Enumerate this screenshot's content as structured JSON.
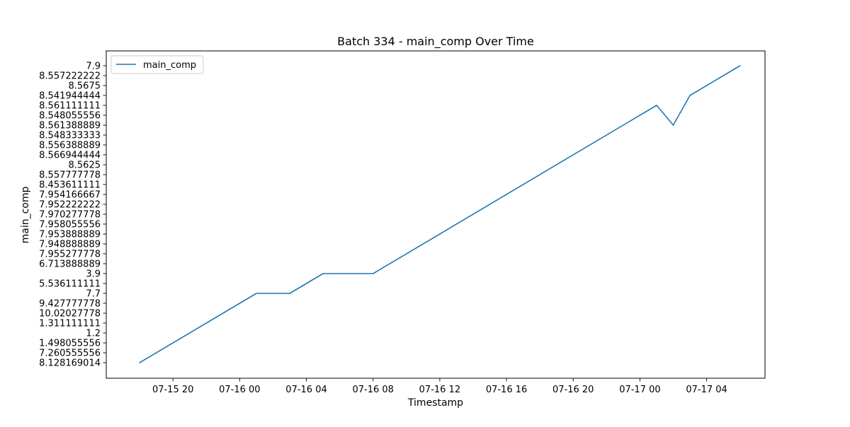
{
  "chart_data": {
    "type": "line",
    "title": "Batch 334 - main_comp Over Time",
    "xlabel": "Timestamp",
    "ylabel": "main_comp",
    "x_axis_type": "datetime",
    "xlim": [
      "2024-07-15 16:00",
      "2024-07-17 07:30"
    ],
    "x_ticks": [
      {
        "value": "2024-07-15 20:00",
        "label": "07-15 20"
      },
      {
        "value": "2024-07-16 00:00",
        "label": "07-16 00"
      },
      {
        "value": "2024-07-16 04:00",
        "label": "07-16 04"
      },
      {
        "value": "2024-07-16 08:00",
        "label": "07-16 08"
      },
      {
        "value": "2024-07-16 12:00",
        "label": "07-16 12"
      },
      {
        "value": "2024-07-16 16:00",
        "label": "07-16 16"
      },
      {
        "value": "2024-07-16 20:00",
        "label": "07-16 20"
      },
      {
        "value": "2024-07-17 00:00",
        "label": "07-17 00"
      },
      {
        "value": "2024-07-17 04:00",
        "label": "07-17 04"
      }
    ],
    "y_axis_type": "categorical",
    "y_categories": [
      "8.128169014",
      "7.260555556",
      "1.498055556",
      "1.2",
      "1.311111111",
      "10.02027778",
      "9.427777778",
      "7.7",
      "5.536111111",
      "3.9",
      "6.713888889",
      "7.955277778",
      "7.948888889",
      "7.953888889",
      "7.958055556",
      "7.970277778",
      "7.952222222",
      "7.954166667",
      "8.453611111",
      "8.557777778",
      "8.5625",
      "8.566944444",
      "8.556388889",
      "8.548333333",
      "8.561388889",
      "8.548055556",
      "8.561111111",
      "8.541944444",
      "8.5675",
      "8.557222222",
      "7.9"
    ],
    "series": [
      {
        "name": "main_comp",
        "color": "#1f77b4",
        "points": [
          {
            "x": "2024-07-15 18:00",
            "y": "8.128169014"
          },
          {
            "x": "2024-07-16 01:00",
            "y": "7.7"
          },
          {
            "x": "2024-07-16 03:00",
            "y": "7.7"
          },
          {
            "x": "2024-07-16 05:00",
            "y": "3.9"
          },
          {
            "x": "2024-07-16 08:00",
            "y": "3.9"
          },
          {
            "x": "2024-07-17 01:00",
            "y": "8.561111111"
          },
          {
            "x": "2024-07-17 02:00",
            "y": "8.561388889"
          },
          {
            "x": "2024-07-17 03:00",
            "y": "8.541944444"
          },
          {
            "x": "2024-07-17 06:00",
            "y": "7.9"
          }
        ]
      }
    ],
    "grid": false,
    "legend": {
      "position": "top-left",
      "entries": [
        "main_comp"
      ]
    }
  }
}
